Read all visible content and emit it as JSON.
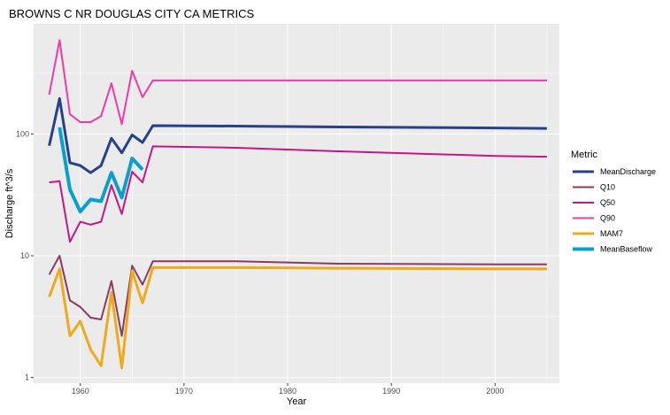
{
  "chart_data": {
    "type": "line",
    "title": "BROWNS C NR DOUGLAS CITY CA  METRICS",
    "xlabel": "Year",
    "ylabel": "Discharge ft^3/s",
    "y_scale": "log10",
    "xlim": [
      1955.5,
      2006.2
    ],
    "ylim": [
      0.9,
      800
    ],
    "x_ticks": [
      1960,
      1970,
      1980,
      1990,
      2000
    ],
    "x_tick_labels": [
      "1960",
      "1970",
      "1980",
      "1990",
      "2000"
    ],
    "y_ticks": [
      1,
      10,
      100
    ],
    "y_tick_labels": [
      "1",
      "10",
      "100"
    ],
    "grid": true,
    "panel_background": "#ebebeb",
    "legend": {
      "title": "Metric",
      "position": "right"
    },
    "series": [
      {
        "name": "MeanDischarge",
        "color": "#27408b",
        "width": 3,
        "x": [
          1957,
          1958,
          1959,
          1960,
          1961,
          1962,
          1963,
          1964,
          1965,
          1966,
          1967,
          1975,
          1985,
          2000,
          2005
        ],
        "y": [
          80,
          195,
          58,
          55,
          48,
          55,
          92,
          70,
          98,
          85,
          117,
          116,
          114,
          112,
          111
        ]
      },
      {
        "name": "Q10",
        "color": "#8b3a62",
        "width": 2,
        "x": [
          1957,
          1958,
          1959,
          1960,
          1961,
          1962,
          1963,
          1964,
          1965,
          1966,
          1967,
          1975,
          1985,
          2000,
          2005
        ],
        "y": [
          7,
          10,
          4.3,
          3.8,
          3.1,
          3.0,
          6.2,
          2.2,
          8.3,
          5.8,
          9,
          9,
          8.6,
          8.5,
          8.5
        ]
      },
      {
        "name": "Q50",
        "color": "#c71585",
        "width": 2,
        "x": [
          1957,
          1958,
          1959,
          1960,
          1961,
          1962,
          1963,
          1964,
          1965,
          1966,
          1967,
          1975,
          1985,
          2000,
          2005
        ],
        "y": [
          40,
          41,
          13,
          19,
          18,
          19,
          38,
          22,
          49,
          40,
          79,
          77,
          72,
          66,
          65
        ]
      },
      {
        "name": "Q90",
        "color": "#ee3aa8",
        "width": 2,
        "x": [
          1957,
          1958,
          1959,
          1960,
          1961,
          1962,
          1963,
          1964,
          1965,
          1966,
          1967,
          1975,
          1985,
          2000,
          2005
        ],
        "y": [
          210,
          590,
          145,
          125,
          125,
          140,
          260,
          120,
          330,
          200,
          275,
          275,
          275,
          275,
          275
        ]
      },
      {
        "name": "MAM7",
        "color": "#eeaa1a",
        "width": 3,
        "x": [
          1957,
          1958,
          1959,
          1960,
          1961,
          1962,
          1963,
          1964,
          1965,
          1966,
          1967,
          1975,
          1985,
          2000,
          2005
        ],
        "y": [
          4.6,
          7.8,
          2.2,
          2.9,
          1.7,
          1.25,
          5,
          1.2,
          7.5,
          4.1,
          8,
          8,
          7.9,
          7.8,
          7.8
        ]
      },
      {
        "name": "MeanBaseflow",
        "color": "#0aa0cc",
        "width": 4,
        "x": [
          1958,
          1959,
          1960,
          1961,
          1962,
          1963,
          1964,
          1965,
          1966
        ],
        "y": [
          113,
          35,
          23,
          29,
          28,
          48,
          30,
          63,
          51
        ]
      }
    ]
  }
}
